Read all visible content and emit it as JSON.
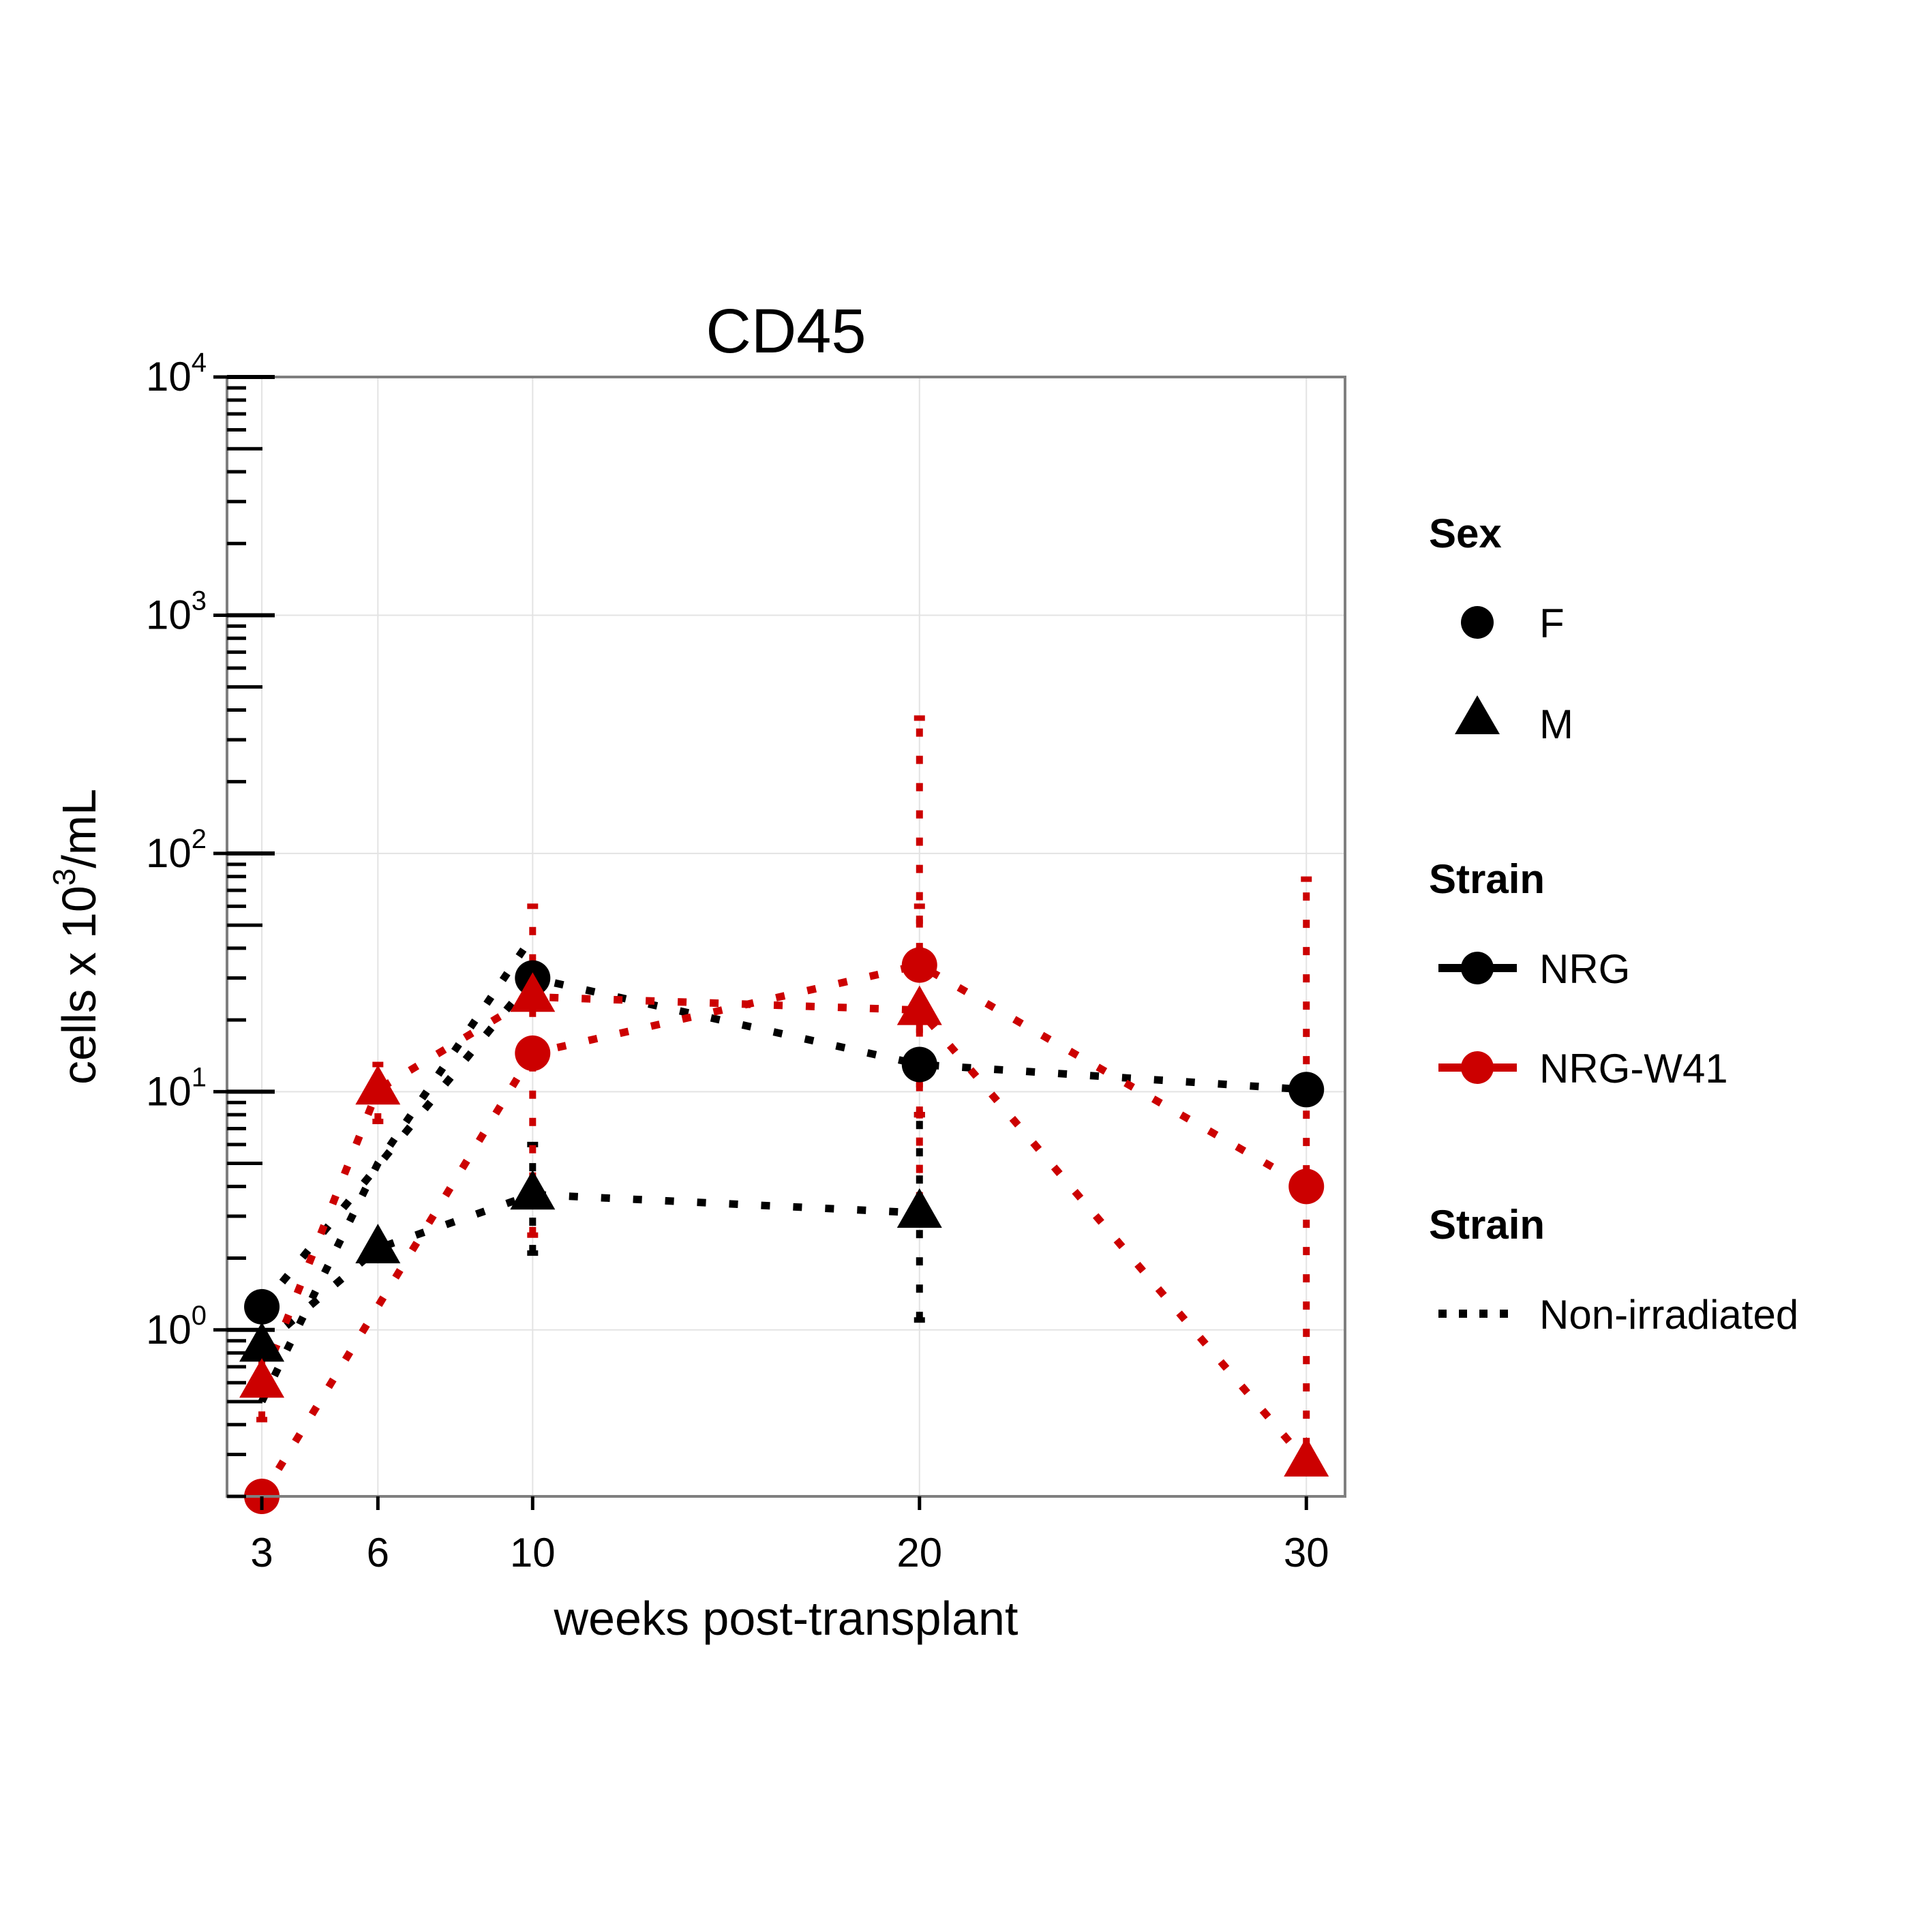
{
  "chart_data": {
    "type": "line",
    "title": "CD45",
    "xlabel": "weeks post-transplant",
    "ylabel_parts": {
      "pre": "cells x 10",
      "sup": "3",
      "post": "/mL"
    },
    "x_ticks": [
      3,
      6,
      10,
      20,
      30
    ],
    "x_tick_labels": [
      "3",
      "6",
      "10",
      "20",
      "30"
    ],
    "y_scale": "log10",
    "y_ticks": [
      1,
      10,
      100,
      1000,
      10000
    ],
    "y_tick_labels": [
      {
        "base": "10",
        "exp": "0"
      },
      {
        "base": "10",
        "exp": "1"
      },
      {
        "base": "10",
        "exp": "2"
      },
      {
        "base": "10",
        "exp": "3"
      },
      {
        "base": "10",
        "exp": "4"
      }
    ],
    "xlim": [
      2.1,
      31
    ],
    "ylim": [
      0.2,
      10000
    ],
    "grid": true,
    "legend_position": "right",
    "colors": {
      "NRG": "#000000",
      "NRG-W41": "#cc0000"
    },
    "series": [
      {
        "strain": "NRG",
        "sex": "F",
        "irradiation": "irradiated",
        "color": "#000000",
        "shape": "circle",
        "points": [
          {
            "x": 3,
            "y": 1.25
          },
          {
            "x": 10,
            "y": 30
          },
          {
            "x": 20,
            "y": 13
          },
          {
            "x": 30,
            "y": 10.2
          }
        ],
        "error_bars": []
      },
      {
        "strain": "NRG",
        "sex": "M",
        "irradiation": "irradiated",
        "color": "#000000",
        "shape": "triangle",
        "points": [
          {
            "x": 3,
            "y": 0.85
          },
          {
            "x": 6,
            "y": 2.2
          },
          {
            "x": 10,
            "y": 3.7
          },
          {
            "x": 20,
            "y": 3.1
          }
        ],
        "error_bars": [
          {
            "x": 10,
            "low": 2.1,
            "high": 6
          },
          {
            "x": 20,
            "low": 1.1,
            "high": 8
          }
        ]
      },
      {
        "strain": "NRG-W41",
        "sex": "F",
        "irradiation": "irradiated",
        "color": "#cc0000",
        "shape": "circle",
        "points": [
          {
            "x": 3,
            "y": 0.2
          },
          {
            "x": 10,
            "y": 14.5
          },
          {
            "x": 20,
            "y": 34
          },
          {
            "x": 30,
            "y": 4
          }
        ],
        "error_bars": [
          {
            "x": 10,
            "low": 2.5,
            "high": 60
          },
          {
            "x": 20,
            "low": 3.5,
            "high": 370
          },
          {
            "x": 30,
            "low": 0.25,
            "high": 78
          }
        ]
      },
      {
        "strain": "NRG-W41",
        "sex": "M",
        "irradiation": "irradiated",
        "color": "#cc0000",
        "shape": "triangle",
        "points": [
          {
            "x": 3,
            "y": 0.6
          },
          {
            "x": 6,
            "y": 10.2
          },
          {
            "x": 10,
            "y": 25
          },
          {
            "x": 20,
            "y": 22
          },
          {
            "x": 30,
            "y": 0.28
          }
        ],
        "error_bars": [
          {
            "x": 3,
            "low": 0.42,
            "high": 0.8
          },
          {
            "x": 6,
            "low": 7.5,
            "high": 13
          },
          {
            "x": 20,
            "low": 8,
            "high": 60
          }
        ]
      },
      {
        "strain": "NRG",
        "sex": "F",
        "irradiation": "Non-irradiated",
        "color": "#000000",
        "shape": "none",
        "points": [
          {
            "x": 3,
            "y": 0.5
          },
          {
            "x": 6,
            "y": 5
          },
          {
            "x": 10,
            "y": 45
          }
        ],
        "error_bars": []
      }
    ],
    "legend": {
      "sex": {
        "title": "Sex",
        "items": [
          {
            "label": "F",
            "shape": "circle"
          },
          {
            "label": "M",
            "shape": "triangle"
          }
        ]
      },
      "strain": {
        "title": "Strain",
        "items": [
          {
            "label": "NRG",
            "color": "#000000"
          },
          {
            "label": "NRG-W41",
            "color": "#cc0000"
          }
        ]
      },
      "linetype": {
        "title": "Strain",
        "items": [
          {
            "label": "Non-irradiated",
            "style": "dotted"
          }
        ]
      }
    }
  }
}
